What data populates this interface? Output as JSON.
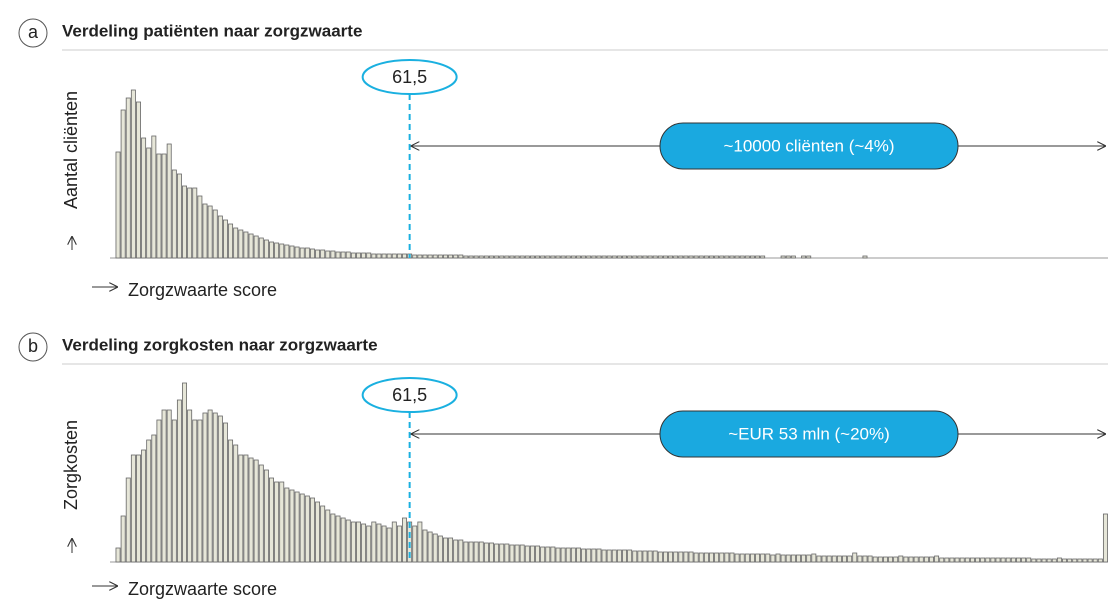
{
  "chart_data": [
    {
      "type": "histogram",
      "panel_label": "a",
      "title": "Verdeling patiënten naar zorgzwaarte",
      "ylabel": "Aantal cliënten",
      "xlabel": "Zorgzwaarte score",
      "color": "#e6e6d8",
      "xlim": [
        0,
        198
      ],
      "ylim": [
        0,
        170
      ],
      "marker": {
        "value": 61.5,
        "label": "61,5"
      },
      "range_label": "~10000 cliënten (~4%)",
      "bins": [
        4,
        5,
        6,
        7,
        8,
        9,
        10,
        11,
        12,
        13,
        14,
        15,
        16,
        17,
        18,
        19,
        20,
        21,
        22,
        23,
        24,
        25,
        26,
        27,
        28,
        29,
        30,
        31,
        32,
        33,
        34,
        35,
        36,
        37,
        38,
        39,
        40,
        41,
        42,
        43,
        44,
        45,
        46,
        47,
        48,
        49,
        50,
        51,
        52,
        53,
        54,
        55,
        56,
        57,
        58,
        59,
        60,
        61,
        62,
        63,
        64,
        65,
        66,
        67,
        68,
        69,
        70,
        71,
        72,
        73,
        74,
        75,
        76,
        77,
        78,
        79,
        80,
        81,
        82,
        83,
        84,
        85,
        86,
        87,
        88,
        89,
        90,
        91,
        92,
        93,
        94,
        95,
        96,
        97,
        98,
        99,
        100,
        101,
        102,
        103,
        104,
        105,
        106,
        107,
        108,
        109,
        110,
        111,
        112,
        113,
        114,
        115,
        116,
        117,
        118,
        119,
        120,
        121,
        122,
        123,
        124,
        125,
        126,
        127,
        128,
        129,
        130,
        131,
        132,
        133,
        134,
        135,
        136,
        137,
        138,
        139,
        140,
        141,
        142,
        143,
        144,
        145,
        146,
        147,
        148,
        149,
        150,
        151,
        152
      ],
      "values": [
        106,
        148,
        160,
        168,
        156,
        120,
        110,
        122,
        104,
        104,
        114,
        88,
        84,
        72,
        70,
        70,
        62,
        54,
        52,
        48,
        42,
        38,
        34,
        30,
        28,
        26,
        24,
        22,
        20,
        18,
        16,
        15,
        14,
        13,
        12,
        11,
        10,
        10,
        9,
        8,
        8,
        7,
        7,
        6,
        6,
        6,
        5,
        5,
        5,
        5,
        4,
        4,
        4,
        4,
        4,
        4,
        4,
        4,
        3,
        3,
        3,
        3,
        3,
        3,
        3,
        3,
        3,
        3,
        2,
        2,
        2,
        2,
        2,
        2,
        2,
        2,
        2,
        2,
        2,
        2,
        2,
        2,
        2,
        2,
        2,
        2,
        2,
        2,
        2,
        2,
        2,
        2,
        2,
        2,
        2,
        2,
        2,
        2,
        2,
        2,
        2,
        2,
        2,
        2,
        2,
        2,
        2,
        2,
        2,
        2,
        2,
        2,
        2,
        2,
        2,
        2,
        2,
        2,
        2,
        2,
        2,
        2,
        2,
        2,
        2,
        2,
        2,
        0,
        0,
        0,
        2,
        2,
        2,
        0,
        2,
        2,
        0,
        0,
        0,
        0,
        0,
        0,
        0,
        0,
        0,
        0,
        2,
        0
      ]
    },
    {
      "type": "histogram",
      "panel_label": "b",
      "title": "Verdeling zorgkosten naar zorgzwaarte",
      "ylabel": "Zorgkosten",
      "xlabel": "Zorgzwaarte score",
      "color": "#e6e6d8",
      "xlim": [
        0,
        198
      ],
      "ylim": [
        0,
        180
      ],
      "marker": {
        "value": 61.5,
        "label": "61,5"
      },
      "range_label": "~EUR 53 mln (~20%)",
      "bins": [
        4,
        5,
        6,
        7,
        8,
        9,
        10,
        11,
        12,
        13,
        14,
        15,
        16,
        17,
        18,
        19,
        20,
        21,
        22,
        23,
        24,
        25,
        26,
        27,
        28,
        29,
        30,
        31,
        32,
        33,
        34,
        35,
        36,
        37,
        38,
        39,
        40,
        41,
        42,
        43,
        44,
        45,
        46,
        47,
        48,
        49,
        50,
        51,
        52,
        53,
        54,
        55,
        56,
        57,
        58,
        59,
        60,
        61,
        62,
        63,
        64,
        65,
        66,
        67,
        68,
        69,
        70,
        71,
        72,
        73,
        74,
        75,
        76,
        77,
        78,
        79,
        80,
        81,
        82,
        83,
        84,
        85,
        86,
        87,
        88,
        89,
        90,
        91,
        92,
        93,
        94,
        95,
        96,
        97,
        98,
        99,
        100,
        101,
        102,
        103,
        104,
        105,
        106,
        107,
        108,
        109,
        110,
        111,
        112,
        113,
        114,
        115,
        116,
        117,
        118,
        119,
        120,
        121,
        122,
        123,
        124,
        125,
        126,
        127,
        128,
        129,
        130,
        131,
        132,
        133,
        134,
        135,
        136,
        137,
        138,
        139,
        140,
        141,
        142,
        143,
        144,
        145,
        146,
        147,
        148,
        149,
        150,
        151,
        152,
        153,
        154,
        155,
        156,
        157,
        158,
        159,
        160,
        161,
        162,
        163,
        164,
        165,
        166,
        167,
        168,
        169,
        170,
        171,
        172,
        173,
        174,
        175,
        176,
        177,
        178,
        179,
        180,
        181,
        182,
        183,
        184,
        185,
        186,
        187,
        188,
        189,
        190,
        191,
        192,
        193,
        194,
        195,
        196,
        197,
        198
      ],
      "values": [
        14,
        46,
        84,
        107,
        107,
        112,
        122,
        127,
        142,
        152,
        152,
        142,
        162,
        179,
        152,
        142,
        142,
        149,
        152,
        149,
        146,
        139,
        122,
        117,
        107,
        107,
        104,
        102,
        97,
        92,
        84,
        80,
        80,
        74,
        72,
        70,
        68,
        66,
        64,
        60,
        56,
        52,
        48,
        46,
        44,
        42,
        40,
        40,
        38,
        36,
        40,
        38,
        36,
        34,
        40,
        36,
        44,
        40,
        36,
        40,
        32,
        30,
        28,
        26,
        24,
        24,
        22,
        22,
        20,
        20,
        20,
        20,
        19,
        19,
        18,
        18,
        18,
        17,
        17,
        17,
        16,
        16,
        16,
        15,
        15,
        15,
        14,
        14,
        14,
        14,
        14,
        13,
        13,
        13,
        13,
        12,
        12,
        12,
        12,
        12,
        12,
        11,
        11,
        11,
        11,
        11,
        10,
        10,
        10,
        10,
        10,
        10,
        10,
        9,
        9,
        9,
        9,
        9,
        9,
        9,
        9,
        8,
        8,
        8,
        8,
        8,
        8,
        8,
        7,
        8,
        7,
        7,
        7,
        7,
        7,
        7,
        8,
        6,
        6,
        6,
        6,
        6,
        6,
        6,
        9,
        6,
        6,
        6,
        5,
        5,
        5,
        5,
        5,
        6,
        5,
        5,
        5,
        5,
        5,
        5,
        6,
        4,
        4,
        4,
        4,
        4,
        4,
        4,
        4,
        4,
        4,
        4,
        4,
        4,
        4,
        4,
        4,
        4,
        4,
        3,
        3,
        3,
        3,
        3,
        4,
        3,
        3,
        3,
        3,
        3,
        3,
        3,
        3,
        48
      ]
    }
  ]
}
